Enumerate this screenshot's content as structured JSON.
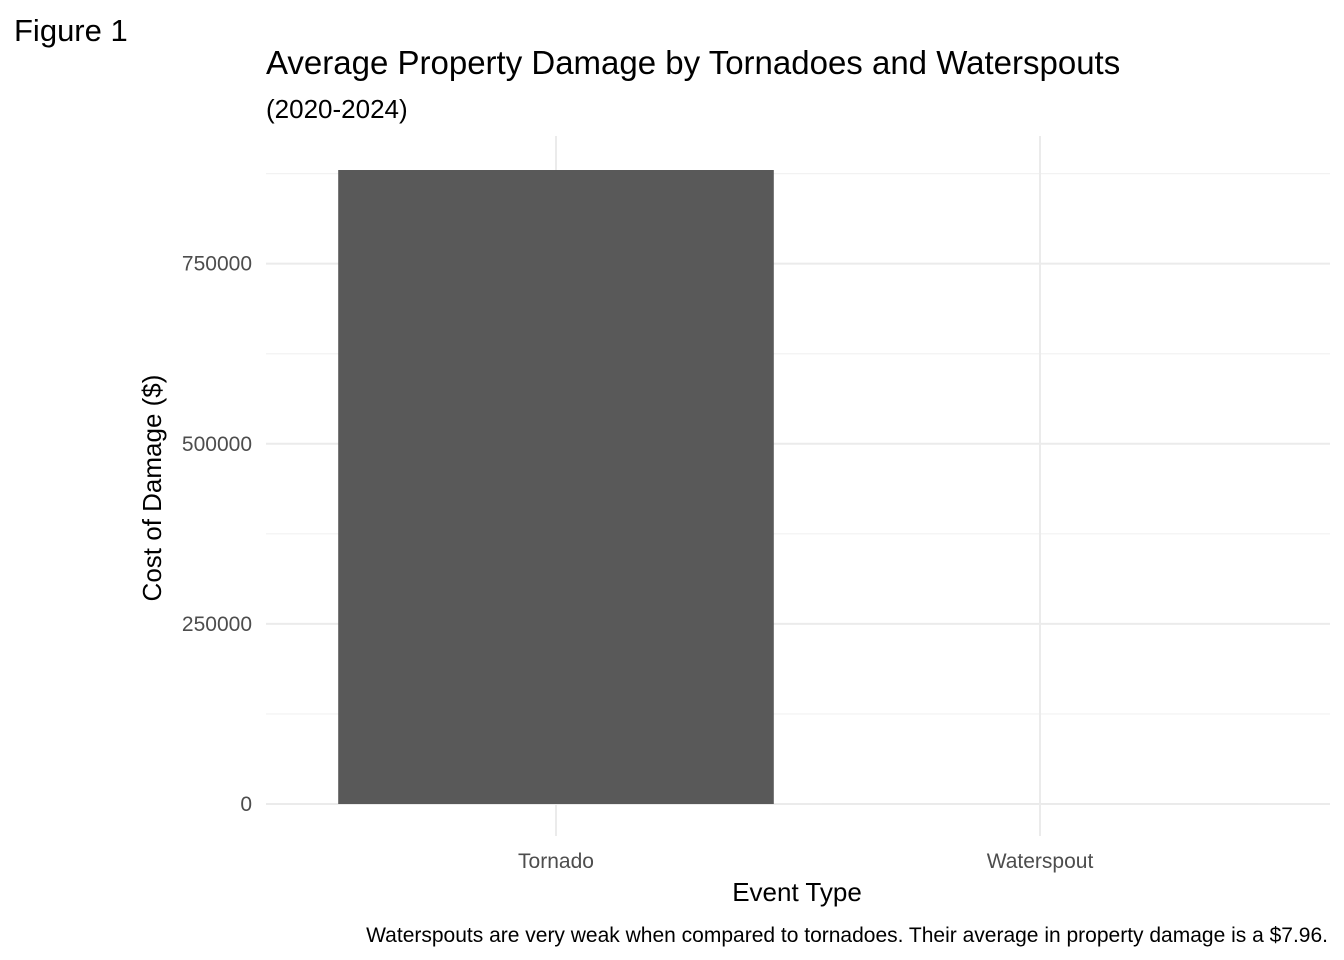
{
  "figure_label": "Figure 1",
  "chart_data": {
    "type": "bar",
    "title": "Average Property Damage by Tornadoes and Waterspouts",
    "subtitle": "(2020-2024)",
    "xlabel": "Event Type",
    "ylabel": "Cost of Damage ($)",
    "categories": [
      "Tornado",
      "Waterspout"
    ],
    "values": [
      880000,
      7.96
    ],
    "ylim": [
      0,
      880000
    ],
    "y_ticks": [
      0,
      250000,
      500000,
      750000
    ],
    "y_tick_labels": [
      "0",
      "250000",
      "500000",
      "750000"
    ],
    "grid": true,
    "legend": "none",
    "bar_color": "#595959",
    "caption": "Waterspouts are very weak when compared to tornadoes. Their average in property damage is a $7.96."
  }
}
